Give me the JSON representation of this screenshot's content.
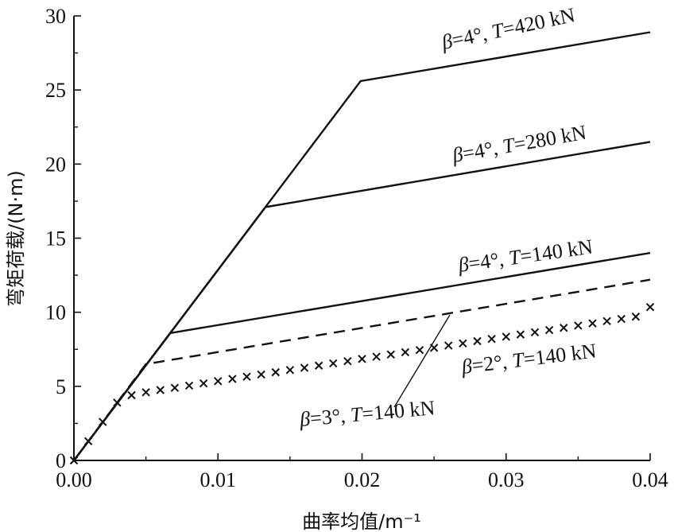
{
  "chart_data": {
    "type": "line",
    "xlabel": "曲率均值/m⁻¹",
    "ylabel": "弯矩荷载/(N·m)",
    "xlim": [
      0,
      0.04
    ],
    "ylim": [
      0,
      30
    ],
    "xticks": [
      "0.00",
      "0.01",
      "0.02",
      "0.03",
      "0.04"
    ],
    "yticks": [
      "0",
      "5",
      "10",
      "15",
      "20",
      "25",
      "30"
    ],
    "grid": false,
    "series": [
      {
        "name": "β=4°, T=420 kN",
        "style": "solid",
        "x": [
          0,
          0.0199,
          0.04
        ],
        "y": [
          0,
          25.6,
          28.9
        ],
        "label": {
          "beta": "β",
          "eq1": "=4°, ",
          "T": "T",
          "eq2": "=420 kN"
        }
      },
      {
        "name": "β=4°, T=280 kN",
        "style": "solid",
        "x": [
          0,
          0.0133,
          0.04
        ],
        "y": [
          0,
          17.1,
          21.5
        ],
        "label": {
          "beta": "β",
          "eq1": "=4°, ",
          "T": "T",
          "eq2": "=280 kN"
        }
      },
      {
        "name": "β=4°, T=140 kN",
        "style": "solid",
        "x": [
          0,
          0.0067,
          0.04
        ],
        "y": [
          0,
          8.6,
          14.0
        ],
        "label": {
          "beta": "β",
          "eq1": "=4°, ",
          "T": "T",
          "eq2": "=140 kN"
        }
      },
      {
        "name": "β=3°, T=140 kN",
        "style": "dashed",
        "x": [
          0,
          0.005,
          0.04
        ],
        "y": [
          0,
          6.5,
          12.2
        ],
        "label": {
          "beta": "β",
          "eq1": "=3°, ",
          "T": "T",
          "eq2": "=140 kN"
        }
      },
      {
        "name": "β=2°, T=140 kN",
        "style": "cross-markers",
        "x": [
          0,
          0.001,
          0.002,
          0.003,
          0.004,
          0.005,
          0.006,
          0.007,
          0.008,
          0.009,
          0.01,
          0.011,
          0.012,
          0.013,
          0.014,
          0.015,
          0.016,
          0.017,
          0.018,
          0.019,
          0.02,
          0.021,
          0.022,
          0.023,
          0.024,
          0.025,
          0.026,
          0.027,
          0.028,
          0.029,
          0.03,
          0.031,
          0.032,
          0.033,
          0.034,
          0.035,
          0.036,
          0.037,
          0.038,
          0.039,
          0.04
        ],
        "y": [
          0,
          1.3,
          2.6,
          3.9,
          4.4,
          4.6,
          4.75,
          4.9,
          5.05,
          5.2,
          5.35,
          5.5,
          5.65,
          5.8,
          5.95,
          6.1,
          6.25,
          6.4,
          6.55,
          6.7,
          6.85,
          7.0,
          7.15,
          7.3,
          7.45,
          7.6,
          7.75,
          7.9,
          8.05,
          8.2,
          8.35,
          8.5,
          8.65,
          8.8,
          8.95,
          9.1,
          9.25,
          9.4,
          9.55,
          9.7,
          10.35
        ],
        "label": {
          "beta": "β",
          "eq1": "=2°, ",
          "T": "T",
          "eq2": "=140 kN"
        }
      }
    ]
  }
}
